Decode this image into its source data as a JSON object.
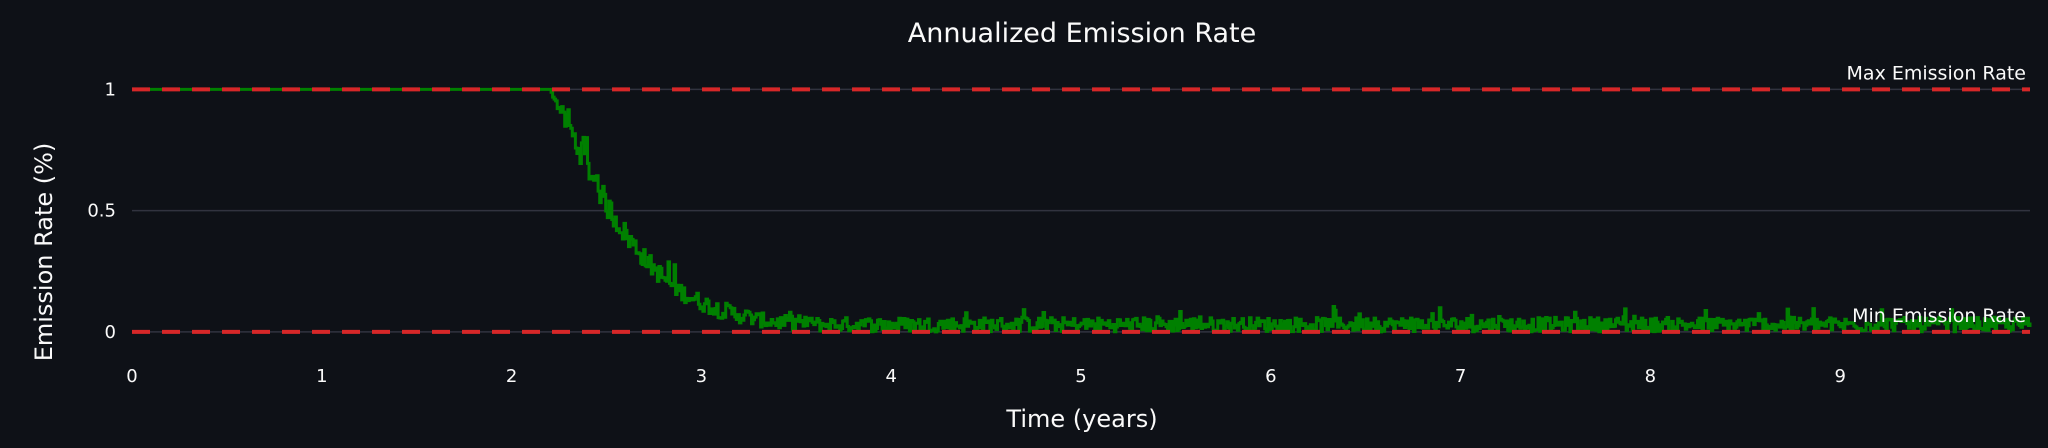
{
  "chart_data": {
    "type": "line",
    "title": "Annualized Emission Rate",
    "xlabel": "Time (years)",
    "ylabel": "Emission Rate (%)",
    "xlim": [
      0,
      10
    ],
    "ylim": [
      -0.05,
      1.08
    ],
    "x_ticks": [
      0,
      1,
      2,
      3,
      4,
      5,
      6,
      7,
      8,
      9
    ],
    "x_tick_labels": [
      "0",
      "1",
      "2",
      "3",
      "4",
      "5",
      "6",
      "7",
      "8",
      "9"
    ],
    "y_ticks": [
      0,
      0.5,
      1
    ],
    "y_tick_labels": [
      "0",
      "0.5",
      "1"
    ],
    "grid": true,
    "reference_lines": [
      {
        "label": "Max Emission Rate",
        "y": 1,
        "color": "#d62728",
        "style": "dashed"
      },
      {
        "label": "Min Emission Rate",
        "y": 0,
        "color": "#d62728",
        "style": "dashed"
      }
    ],
    "series": [
      {
        "color": "#008000",
        "style": "step",
        "x": [
          0,
          2.2,
          2.3,
          2.4,
          2.5,
          2.6,
          2.7,
          2.8,
          2.9,
          3.0,
          3.1,
          3.2,
          3.3,
          3.4,
          3.5,
          3.6,
          3.7,
          3.8,
          3.9,
          4.0,
          4.5,
          5.0,
          5.5,
          6.0,
          6.5,
          7.0,
          7.5,
          8.0,
          8.5,
          9.0,
          9.5,
          10.0
        ],
        "y": [
          1.0,
          1.0,
          0.84,
          0.68,
          0.52,
          0.4,
          0.3,
          0.22,
          0.16,
          0.12,
          0.09,
          0.07,
          0.05,
          0.04,
          0.035,
          0.03,
          0.03,
          0.03,
          0.03,
          0.03,
          0.03,
          0.03,
          0.03,
          0.03,
          0.03,
          0.03,
          0.03,
          0.03,
          0.03,
          0.03,
          0.03,
          0.03
        ],
        "noise_amplitude": [
          0,
          0,
          0.05,
          0.05,
          0.05,
          0.045,
          0.04,
          0.04,
          0.035,
          0.035,
          0.035,
          0.035,
          0.03,
          0.03,
          0.03,
          0.03,
          0.03,
          0.03,
          0.03,
          0.03,
          0.03,
          0.03,
          0.03,
          0.03,
          0.03,
          0.03,
          0.03,
          0.03,
          0.03,
          0.03,
          0.03,
          0.03
        ]
      }
    ]
  }
}
